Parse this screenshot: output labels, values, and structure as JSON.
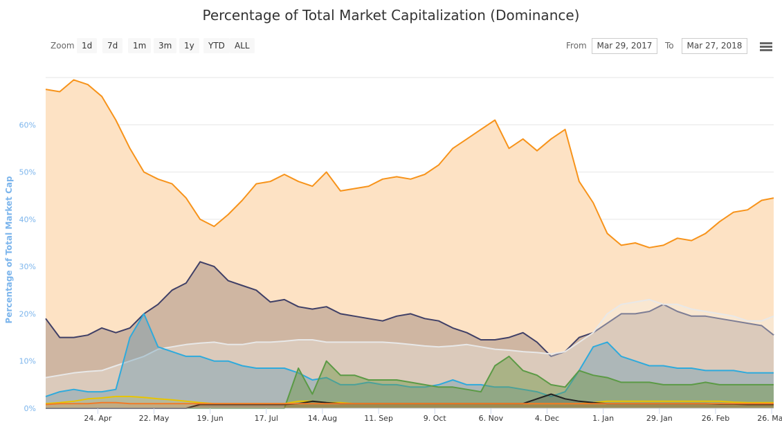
{
  "toolbar": {
    "zoom_label": "Zoom",
    "buttons": [
      "1d",
      "7d",
      "1m",
      "3m",
      "1y",
      "YTD",
      "ALL"
    ],
    "from_label": "From",
    "from_value": "Mar 29, 2017",
    "to_label": "To",
    "to_value": "Mar 27, 2018"
  },
  "chart_data": {
    "type": "area",
    "title": "Percentage of Total Market Capitalization (Dominance)",
    "ylabel": "Percentage of Total Market Cap",
    "xlabel": "",
    "ylim": [
      0,
      70
    ],
    "yticks": [
      "0%",
      "10%",
      "20%",
      "30%",
      "40%",
      "50%",
      "60%"
    ],
    "ytick_values": [
      0,
      10,
      20,
      30,
      40,
      50,
      60
    ],
    "xtick_labels": [
      "24. Apr",
      "22. May",
      "19. Jun",
      "17. Jul",
      "14. Aug",
      "11. Sep",
      "9. Oct",
      "6. Nov",
      "4. Dec",
      "1. Jan",
      "29. Jan",
      "26. Feb",
      "26. Mar"
    ],
    "xtick_days": [
      26,
      54,
      82,
      110,
      138,
      166,
      194,
      222,
      250,
      278,
      306,
      334,
      362
    ],
    "x_range_days": 363,
    "x_step_days": 7,
    "grid": true,
    "series": [
      {
        "color": "#f7931a",
        "fill": "#fde2c4",
        "values": [
          67.5,
          67,
          69.5,
          68.5,
          66,
          61,
          55,
          50,
          48.5,
          47.5,
          44.5,
          40,
          38.5,
          41,
          44,
          47.5,
          48,
          49.5,
          48,
          47,
          50,
          46,
          46.5,
          47,
          48.5,
          49,
          48.5,
          49.5,
          51.5,
          55,
          57,
          59,
          61,
          55,
          57,
          54.5,
          57,
          59,
          48,
          43.5,
          37,
          34.5,
          35,
          34,
          34.5,
          36,
          35.5,
          37,
          39.5,
          41.5,
          42,
          44,
          44.5
        ]
      },
      {
        "color": "#3f3f66",
        "fill": "rgba(120,100,100,0.35)",
        "values": [
          19,
          15,
          15,
          15.5,
          17,
          16,
          17,
          20,
          22,
          25,
          26.5,
          31,
          30,
          27,
          26,
          25,
          22.5,
          23,
          21.5,
          21,
          21.5,
          20,
          19.5,
          19,
          18.5,
          19.5,
          20,
          19,
          18.5,
          17,
          16,
          14.5,
          14.5,
          15,
          16,
          14,
          11,
          12,
          15,
          16,
          18,
          20,
          20,
          20.5,
          22,
          20.5,
          19.5,
          19.5,
          19,
          18.5,
          18,
          17.5,
          15.5
        ]
      },
      {
        "color": "#e8e8e8",
        "fill": "rgba(240,240,235,0.35)",
        "values": [
          6.5,
          7,
          7.5,
          7.8,
          8,
          9,
          10,
          11,
          12.5,
          13,
          13.5,
          13.8,
          14,
          13.5,
          13.5,
          14,
          14,
          14.2,
          14.5,
          14.5,
          14,
          14,
          14,
          14,
          14,
          13.8,
          13.5,
          13.2,
          13,
          13.2,
          13.5,
          13,
          12.5,
          12.3,
          12,
          11.8,
          11.5,
          12,
          14,
          16,
          20,
          22,
          22.5,
          23,
          22,
          22,
          21,
          20.5,
          20,
          19.5,
          18.5,
          18.5,
          19.5
        ]
      },
      {
        "color": "#2eaadc",
        "fill": "rgba(90,150,180,0.35)",
        "values": [
          2.5,
          3.5,
          4,
          3.5,
          3.5,
          4,
          15,
          20,
          13,
          12,
          11,
          11,
          10,
          10,
          9,
          8.5,
          8.5,
          8.5,
          7.5,
          6,
          6.5,
          5,
          5,
          5.5,
          5,
          5,
          4.5,
          4.5,
          5,
          6,
          5,
          5,
          4.5,
          4.5,
          4,
          3.5,
          2.5,
          3.5,
          8,
          13,
          14,
          11,
          10,
          9,
          9,
          8.5,
          8.5,
          8,
          8,
          8,
          7.5,
          7.5,
          7.5
        ]
      },
      {
        "color": "#5b9a45",
        "fill": "rgba(110,150,70,0.45)",
        "values": [
          0,
          0,
          0,
          0,
          0,
          0,
          0,
          0,
          0,
          0,
          0,
          0,
          0,
          0,
          0,
          0,
          0,
          0,
          8.5,
          3,
          10,
          7,
          7,
          6,
          6,
          6,
          5.5,
          5,
          4.5,
          4.5,
          4,
          3.5,
          9,
          11,
          8,
          7,
          5,
          4.5,
          8,
          7,
          6.5,
          5.5,
          5.5,
          5.5,
          5,
          5,
          5,
          5.5,
          5,
          5,
          5,
          5,
          5
        ]
      },
      {
        "color": "#e8c400",
        "fill": "rgba(230,200,0,0.15)",
        "values": [
          1,
          1.2,
          1.5,
          2,
          2.2,
          2.5,
          2.5,
          2.3,
          2,
          1.8,
          1.5,
          1.2,
          1,
          1,
          1,
          1,
          1,
          1,
          1.5,
          1.5,
          1.2,
          1.2,
          1,
          1,
          1,
          1,
          1,
          1,
          1,
          1,
          1,
          1,
          1,
          1,
          1,
          1,
          1,
          1,
          1,
          1.2,
          1.5,
          1.5,
          1.5,
          1.5,
          1.5,
          1.5,
          1.5,
          1.5,
          1.5,
          1.3,
          1.2,
          1.2,
          1.2
        ]
      },
      {
        "color": "#222222",
        "fill": "rgba(40,40,40,0.2)",
        "values": [
          0,
          0,
          0,
          0,
          0,
          0,
          0,
          0,
          0,
          0,
          0,
          0.8,
          0.8,
          0.8,
          0.8,
          0.8,
          0.8,
          0.8,
          1,
          1.5,
          1.2,
          1,
          1,
          1,
          1,
          1,
          1,
          1,
          1,
          1,
          1,
          1,
          1,
          1,
          1,
          2,
          3,
          2,
          1.5,
          1.2,
          1,
          1,
          1,
          1,
          1,
          1,
          1,
          1,
          0.9,
          0.9,
          0.8,
          0.8,
          0.8
        ]
      },
      {
        "color": "#f07a28",
        "fill": "rgba(240,120,40,0.2)",
        "values": [
          0.8,
          1,
          1,
          1,
          1.2,
          1.2,
          1,
          1,
          1,
          1,
          1,
          1,
          1,
          1,
          1,
          1,
          1,
          1,
          1,
          1,
          1,
          1,
          1,
          1,
          1,
          1,
          1,
          1,
          1,
          1,
          1,
          1,
          1,
          1,
          1,
          1,
          1,
          1,
          1,
          1,
          1,
          1,
          1,
          1,
          1,
          1,
          1,
          1,
          1,
          1,
          1,
          1,
          1
        ]
      }
    ]
  }
}
